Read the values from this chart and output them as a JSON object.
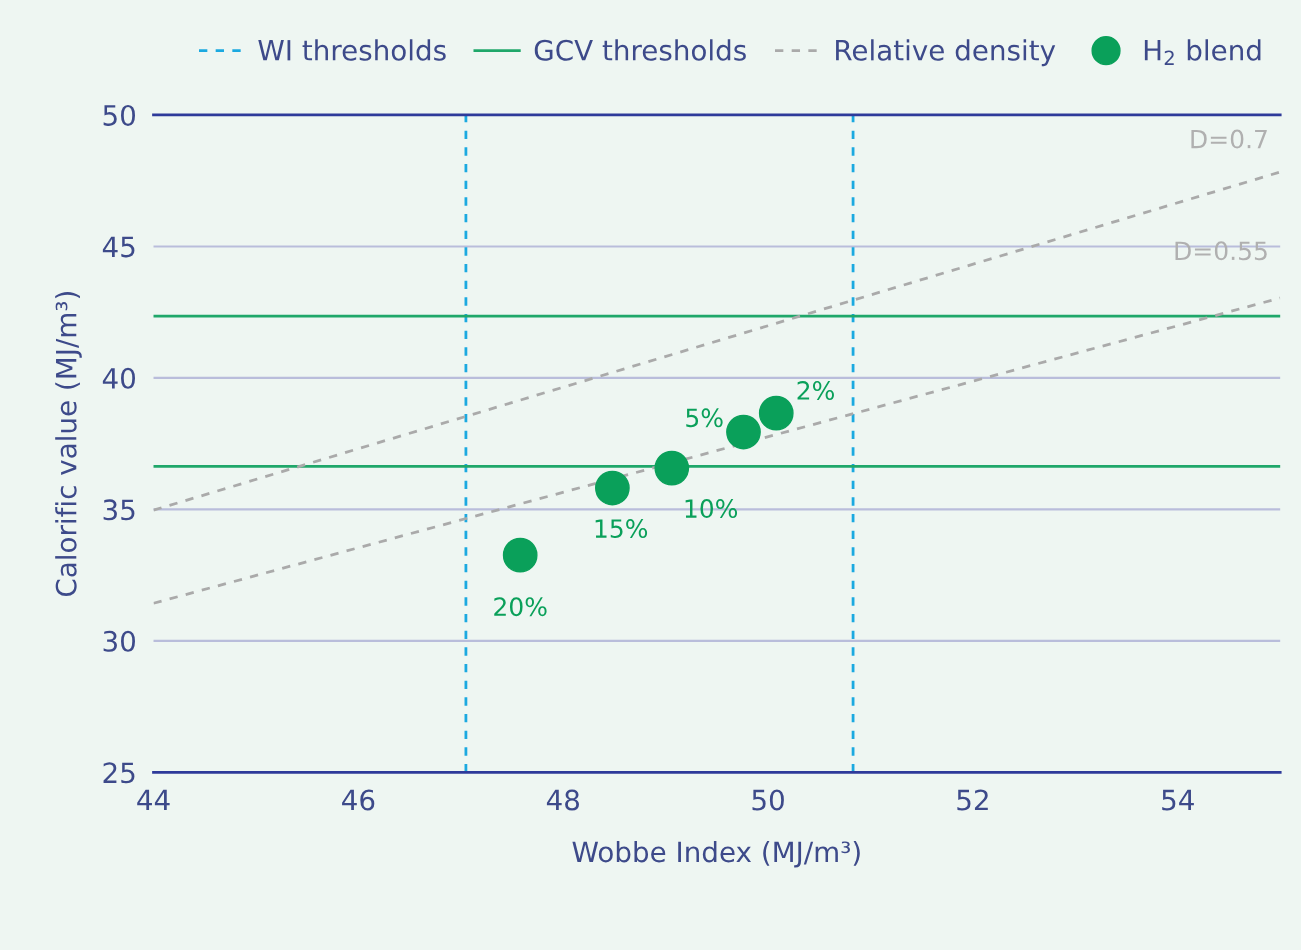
{
  "chart_data": {
    "type": "scatter",
    "xlabel": "Wobbe Index (MJ/m³)",
    "ylabel": "Calorific value (MJ/m³)",
    "xlim": [
      44,
      55
    ],
    "xticks": [
      44,
      46,
      48,
      50,
      52,
      54
    ],
    "ylim": [
      25,
      50
    ],
    "yticks": [
      25,
      30,
      35,
      40,
      45,
      50
    ],
    "grid": "y",
    "legend": "top",
    "marker": "circle",
    "ref_lines": [
      {
        "axis": "x",
        "value": 47.05,
        "label": "WI thresholds",
        "color": "#1ba9e0",
        "line_style": "dashed"
      },
      {
        "axis": "x",
        "value": 50.83,
        "label": null,
        "color": "#1ba9e0",
        "line_style": "dashed"
      },
      {
        "axis": "y",
        "value": 42.35,
        "label": "GCV thresholds",
        "color": "#1fa76a",
        "line_style": "solid"
      },
      {
        "axis": "y",
        "value": 36.64,
        "label": null,
        "color": "#1fa76a",
        "line_style": "solid"
      }
    ],
    "series": [
      {
        "type": "line",
        "name": "Relative density",
        "color": "#aaaaaa",
        "line_style": "dashed",
        "marker": "none",
        "x": [
          44,
          55
        ],
        "values": [
          34.97,
          47.83
        ]
      },
      {
        "type": "line",
        "color": "#aaaaaa",
        "line_style": "dashed",
        "marker": "none",
        "x": [
          44,
          55
        ],
        "values": [
          31.43,
          43.04
        ]
      },
      {
        "name": "H$_{2}$ blend",
        "color": "#0aa05a",
        "x": [
          47.58,
          48.48,
          49.06,
          49.76,
          50.08
        ],
        "values": [
          33.26,
          35.81,
          36.57,
          37.94,
          38.66
        ]
      }
    ],
    "annotations": [
      {
        "text": "20%",
        "x": 47.58,
        "y": 33.26
      },
      {
        "text": "15%",
        "x": 48.48,
        "y": 35.81
      },
      {
        "text": "10%",
        "x": 49.06,
        "y": 36.57
      },
      {
        "text": "5%",
        "x": 49.76,
        "y": 37.94
      },
      {
        "text": "2%",
        "x": 50.08,
        "y": 38.66
      },
      "D=0.7",
      "D=0.55"
    ]
  }
}
